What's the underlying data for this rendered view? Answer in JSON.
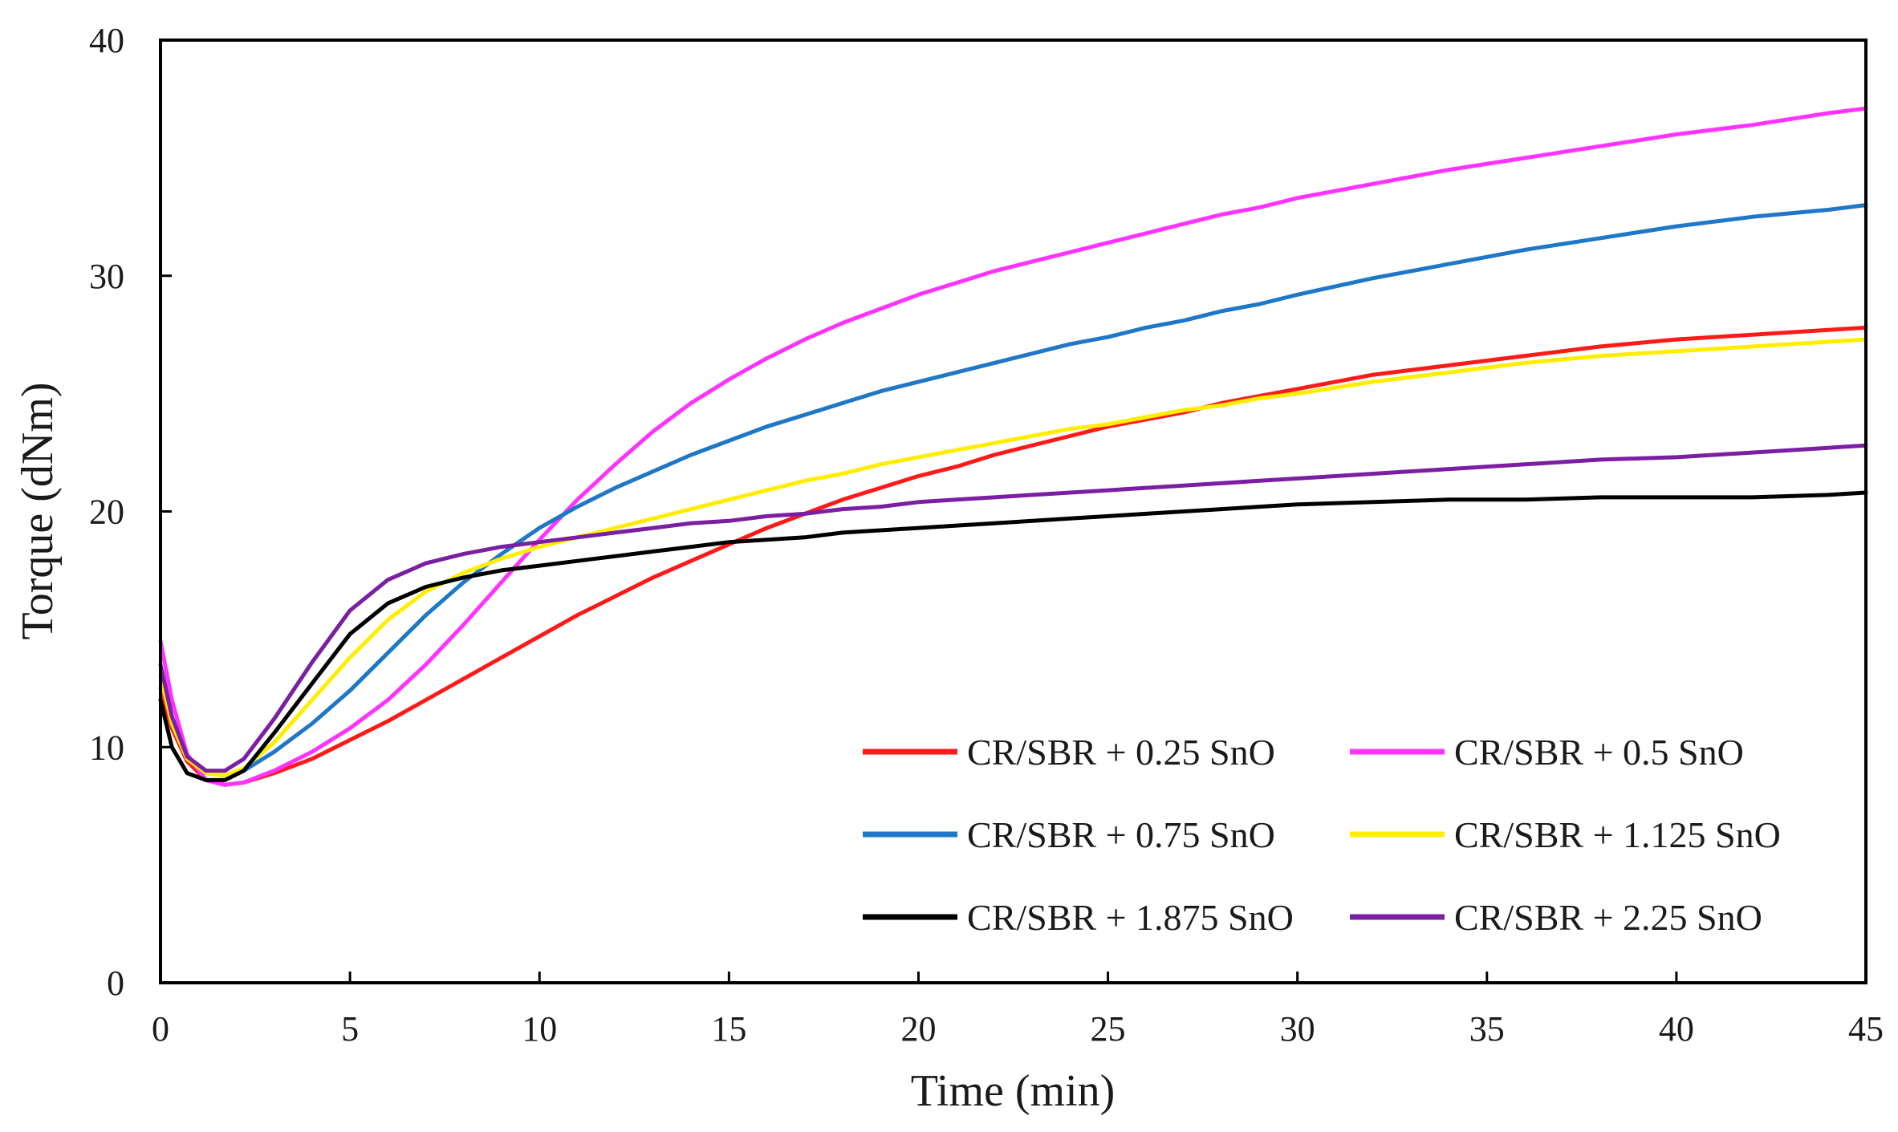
{
  "chart_data": {
    "type": "line",
    "title": "",
    "xlabel": "Time (min)",
    "ylabel": "Torque (dNm)",
    "xlim": [
      0,
      45
    ],
    "ylim": [
      0,
      40
    ],
    "xticks": [
      0,
      5,
      10,
      15,
      20,
      25,
      30,
      35,
      40,
      45
    ],
    "yticks": [
      0,
      10,
      20,
      30,
      40
    ],
    "grid": false,
    "legend_position": "lower-right",
    "series": [
      {
        "name": "CR/SBR + 0.25 SnO",
        "color": "#ff1a1a",
        "x": [
          0,
          0.3,
          0.7,
          1.2,
          1.7,
          2.2,
          3,
          4,
          5,
          6,
          7,
          8,
          9,
          10,
          11,
          12,
          13,
          14,
          15,
          16,
          17,
          18,
          19,
          20,
          21,
          22,
          23,
          24,
          25,
          26,
          27,
          28,
          29,
          30,
          32,
          34,
          36,
          38,
          40,
          42,
          44,
          45
        ],
        "y": [
          12.5,
          10.8,
          9.4,
          8.6,
          8.4,
          8.5,
          8.9,
          9.5,
          10.3,
          11.1,
          12.0,
          12.9,
          13.8,
          14.7,
          15.6,
          16.4,
          17.2,
          17.9,
          18.6,
          19.3,
          19.9,
          20.5,
          21.0,
          21.5,
          21.9,
          22.4,
          22.8,
          23.2,
          23.6,
          23.9,
          24.2,
          24.6,
          24.9,
          25.2,
          25.8,
          26.2,
          26.6,
          27.0,
          27.3,
          27.5,
          27.7,
          27.8
        ]
      },
      {
        "name": "CR/SBR + 0.5 SnO",
        "color": "#ff33ff",
        "x": [
          0,
          0.3,
          0.7,
          1.2,
          1.7,
          2.2,
          3,
          4,
          5,
          6,
          7,
          8,
          9,
          10,
          11,
          12,
          13,
          14,
          15,
          16,
          17,
          18,
          19,
          20,
          21,
          22,
          23,
          24,
          25,
          26,
          27,
          28,
          29,
          30,
          32,
          34,
          36,
          38,
          40,
          42,
          44,
          45
        ],
        "y": [
          14.5,
          12.0,
          9.7,
          8.6,
          8.4,
          8.5,
          9.0,
          9.8,
          10.8,
          12.0,
          13.5,
          15.2,
          17.0,
          18.8,
          20.5,
          22.0,
          23.4,
          24.6,
          25.6,
          26.5,
          27.3,
          28.0,
          28.6,
          29.2,
          29.7,
          30.2,
          30.6,
          31.0,
          31.4,
          31.8,
          32.2,
          32.6,
          32.9,
          33.3,
          33.9,
          34.5,
          35.0,
          35.5,
          36.0,
          36.4,
          36.9,
          37.1
        ]
      },
      {
        "name": "CR/SBR + 0.75 SnO",
        "color": "#1f77c8",
        "x": [
          0,
          0.3,
          0.7,
          1.2,
          1.7,
          2.2,
          3,
          4,
          5,
          6,
          7,
          8,
          9,
          10,
          11,
          12,
          13,
          14,
          15,
          16,
          17,
          18,
          19,
          20,
          21,
          22,
          23,
          24,
          25,
          26,
          27,
          28,
          29,
          30,
          32,
          34,
          36,
          38,
          40,
          42,
          44,
          45
        ],
        "y": [
          13.0,
          11.2,
          9.6,
          8.9,
          8.8,
          9.0,
          9.8,
          11.0,
          12.4,
          14.0,
          15.6,
          17.0,
          18.2,
          19.3,
          20.2,
          21.0,
          21.7,
          22.4,
          23.0,
          23.6,
          24.1,
          24.6,
          25.1,
          25.5,
          25.9,
          26.3,
          26.7,
          27.1,
          27.4,
          27.8,
          28.1,
          28.5,
          28.8,
          29.2,
          29.9,
          30.5,
          31.1,
          31.6,
          32.1,
          32.5,
          32.8,
          33.0
        ]
      },
      {
        "name": "CR/SBR + 1.125 SnO",
        "color": "#ffee00",
        "x": [
          0,
          0.3,
          0.7,
          1.2,
          1.7,
          2.2,
          3,
          4,
          5,
          6,
          7,
          8,
          9,
          10,
          11,
          12,
          13,
          14,
          15,
          16,
          17,
          18,
          19,
          20,
          21,
          22,
          23,
          24,
          25,
          26,
          27,
          28,
          29,
          30,
          32,
          34,
          36,
          38,
          40,
          42,
          44,
          45
        ],
        "y": [
          13.0,
          11.0,
          9.5,
          8.9,
          8.8,
          9.1,
          10.2,
          12.0,
          13.8,
          15.4,
          16.6,
          17.4,
          18.0,
          18.5,
          18.9,
          19.3,
          19.7,
          20.1,
          20.5,
          20.9,
          21.3,
          21.6,
          22.0,
          22.3,
          22.6,
          22.9,
          23.2,
          23.5,
          23.7,
          24.0,
          24.3,
          24.5,
          24.8,
          25.0,
          25.5,
          25.9,
          26.3,
          26.6,
          26.8,
          27.0,
          27.2,
          27.3
        ]
      },
      {
        "name": "CR/SBR + 1.875 SnO",
        "color": "#000000",
        "x": [
          0,
          0.3,
          0.7,
          1.2,
          1.7,
          2.2,
          3,
          4,
          5,
          6,
          7,
          8,
          9,
          10,
          11,
          12,
          13,
          14,
          15,
          16,
          17,
          18,
          19,
          20,
          21,
          22,
          23,
          24,
          25,
          26,
          27,
          28,
          29,
          30,
          32,
          34,
          36,
          38,
          40,
          42,
          44,
          45
        ],
        "y": [
          12.0,
          10.0,
          8.9,
          8.6,
          8.6,
          9.0,
          10.6,
          12.7,
          14.8,
          16.1,
          16.8,
          17.2,
          17.5,
          17.7,
          17.9,
          18.1,
          18.3,
          18.5,
          18.7,
          18.8,
          18.9,
          19.1,
          19.2,
          19.3,
          19.4,
          19.5,
          19.6,
          19.7,
          19.8,
          19.9,
          20.0,
          20.1,
          20.2,
          20.3,
          20.4,
          20.5,
          20.5,
          20.6,
          20.6,
          20.6,
          20.7,
          20.8
        ]
      },
      {
        "name": "CR/SBR + 2.25 SnO",
        "color": "#7b1fa2",
        "x": [
          0,
          0.3,
          0.7,
          1.2,
          1.7,
          2.2,
          3,
          4,
          5,
          6,
          7,
          8,
          9,
          10,
          11,
          12,
          13,
          14,
          15,
          16,
          17,
          18,
          19,
          20,
          21,
          22,
          23,
          24,
          25,
          26,
          27,
          28,
          29,
          30,
          32,
          34,
          36,
          38,
          40,
          42,
          44,
          45
        ],
        "y": [
          13.5,
          11.3,
          9.6,
          9.0,
          9.0,
          9.5,
          11.2,
          13.6,
          15.8,
          17.1,
          17.8,
          18.2,
          18.5,
          18.7,
          18.9,
          19.1,
          19.3,
          19.5,
          19.6,
          19.8,
          19.9,
          20.1,
          20.2,
          20.4,
          20.5,
          20.6,
          20.7,
          20.8,
          20.9,
          21.0,
          21.1,
          21.2,
          21.3,
          21.4,
          21.6,
          21.8,
          22.0,
          22.2,
          22.3,
          22.5,
          22.7,
          22.8
        ]
      }
    ]
  }
}
